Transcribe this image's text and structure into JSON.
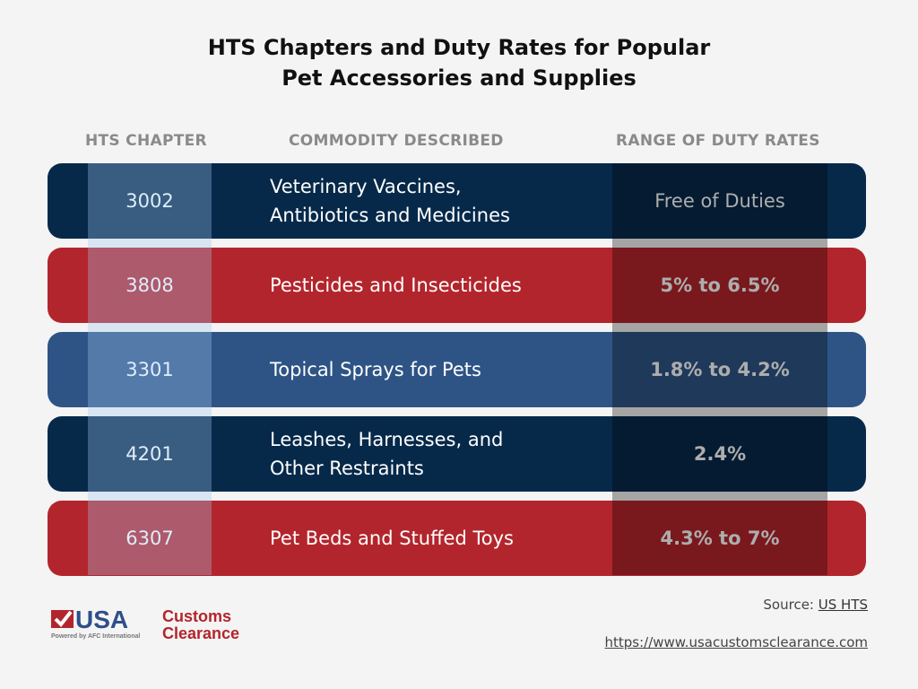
{
  "title_line1": "HTS Chapters and Duty Rates for Popular",
  "title_line2": "Pet Accessories and Supplies",
  "headers": [
    "HTS CHAPTER",
    "COMMODITY DESCRIBED",
    "RANGE OF DUTY RATES"
  ],
  "colors": {
    "navy": "#06294a",
    "red": "#b3252c",
    "blue": "#2e5486"
  },
  "rows": [
    {
      "chapter": "3002",
      "commodity_line1": "Veterinary Vaccines,",
      "commodity_line2": "Antibiotics and Medicines",
      "duty": "Free of Duties",
      "color": "#06294a"
    },
    {
      "chapter": "3808",
      "commodity_line1": "Pesticides and Insecticides",
      "commodity_line2": "",
      "duty": "5%  to 6.5%",
      "color": "#b3252c"
    },
    {
      "chapter": "3301",
      "commodity_line1": "Topical Sprays for Pets",
      "commodity_line2": "",
      "duty": "1.8% to 4.2%",
      "color": "#2e5486"
    },
    {
      "chapter": "4201",
      "commodity_line1": "Leashes, Harnesses, and",
      "commodity_line2": "Other Restraints",
      "duty": "2.4%",
      "color": "#06294a"
    },
    {
      "chapter": "6307",
      "commodity_line1": "Pet Beds and Stuffed Toys",
      "commodity_line2": "",
      "duty": "4.3% to 7%",
      "color": "#b3252c"
    }
  ],
  "source_label": "Source:",
  "source_link": "US HTS",
  "url": "https://www.usacustomsclearance.com",
  "logo": {
    "usa": "USA",
    "customs": "Customs",
    "clearance": "Clearance",
    "tagline": "Powered by AFC International"
  }
}
